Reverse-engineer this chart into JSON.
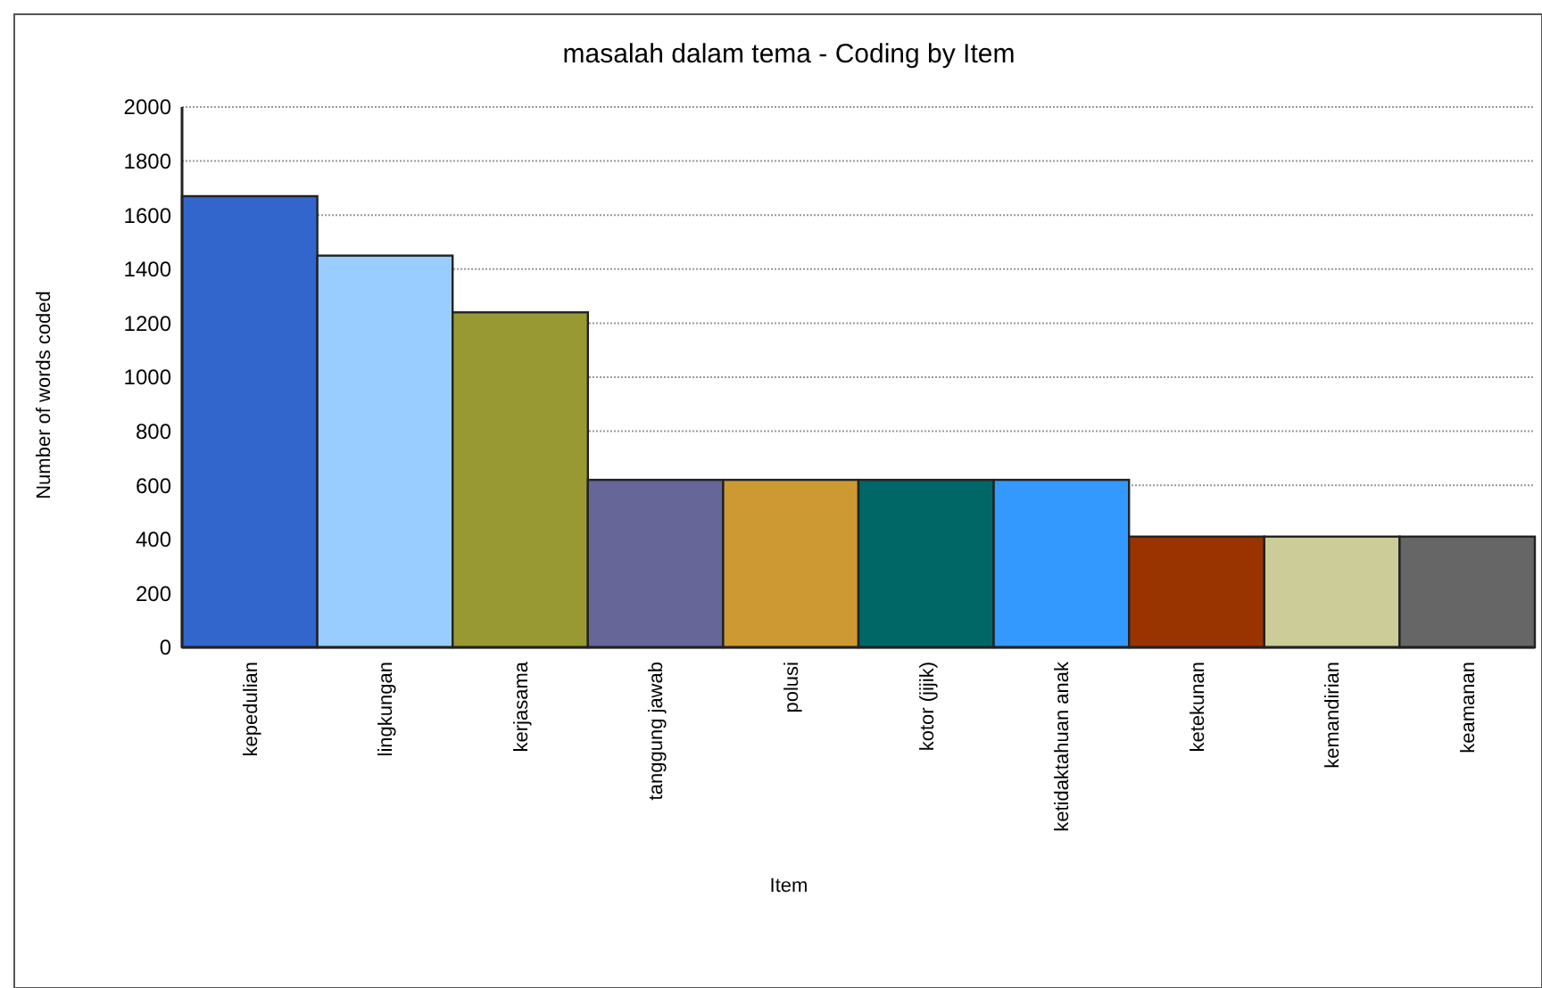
{
  "chart_data": {
    "type": "bar",
    "title": "masalah dalam tema - Coding by Item",
    "xlabel": "Item",
    "ylabel": "Number of words coded",
    "categories": [
      "kepedulian",
      "lingkungan",
      "kerjasama",
      "tanggung jawab",
      "polusi",
      "kotor (jijik)",
      "ketidaktahuan anak",
      "ketekunan",
      "kemandirian",
      "keamanan"
    ],
    "values": [
      1670,
      1450,
      1240,
      620,
      620,
      620,
      620,
      410,
      410,
      410
    ],
    "colors": [
      "#3366cc",
      "#99ccff",
      "#999933",
      "#666699",
      "#cc9933",
      "#006666",
      "#3399ff",
      "#993300",
      "#cccc99",
      "#666666"
    ],
    "ylim": [
      0,
      2000
    ],
    "yticks": [
      0,
      200,
      400,
      600,
      800,
      1000,
      1200,
      1400,
      1600,
      1800,
      2000
    ],
    "grid": "y"
  }
}
